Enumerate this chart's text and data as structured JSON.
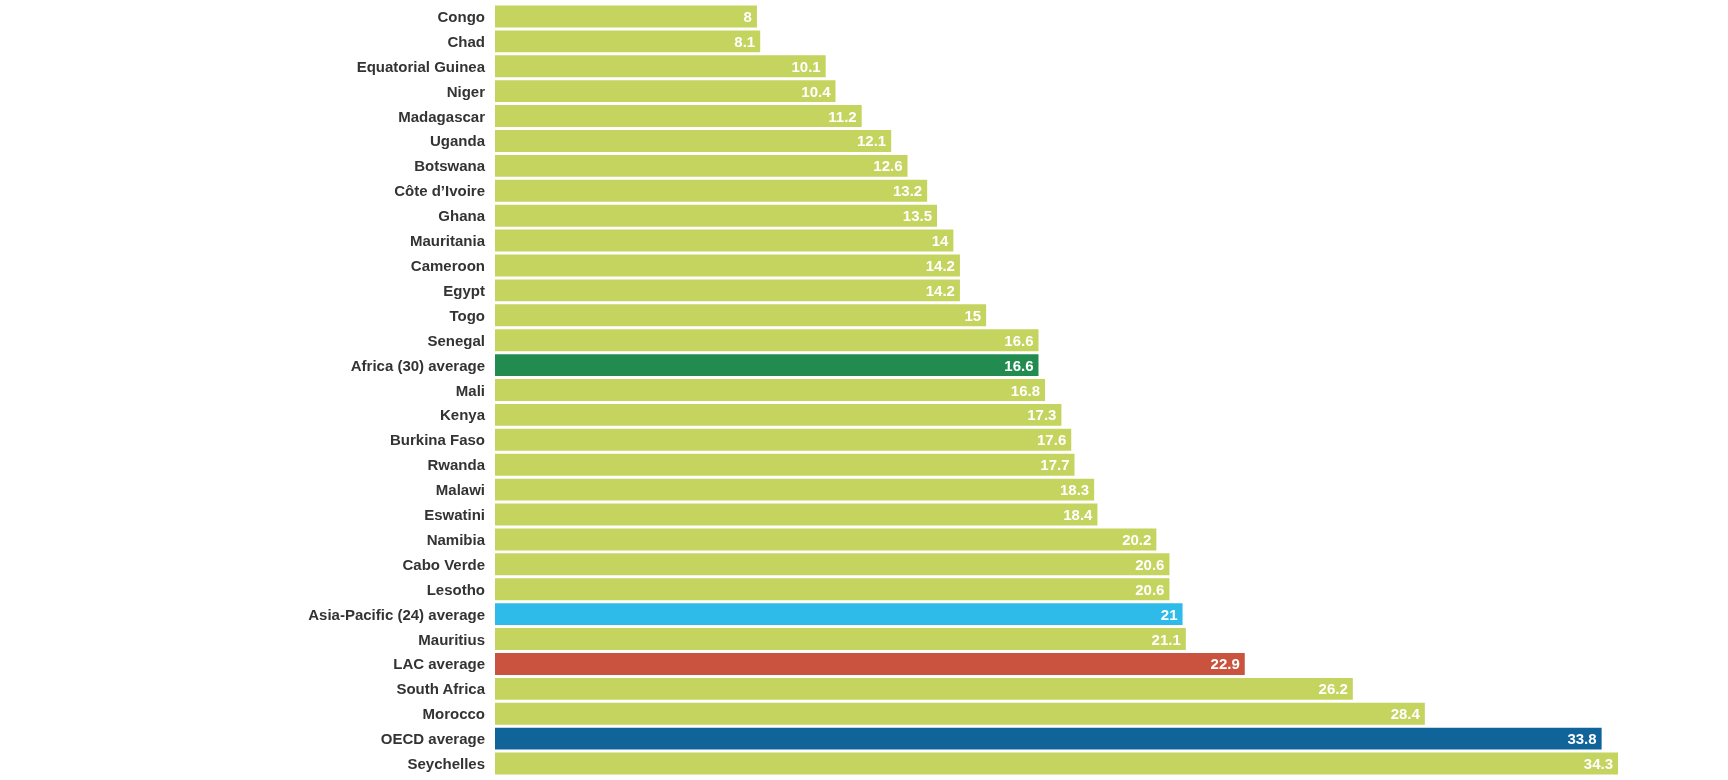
{
  "chart_data": {
    "type": "bar",
    "orientation": "horizontal",
    "data_labels": true,
    "categories": [
      "Congo",
      "Chad",
      "Equatorial Guinea",
      "Niger",
      "Madagascar",
      "Uganda",
      "Botswana",
      "Côte d’Ivoire",
      "Ghana",
      "Mauritania",
      "Cameroon",
      "Egypt",
      "Togo",
      "Senegal",
      "Africa (30) average",
      "Mali",
      "Kenya",
      "Burkina Faso",
      "Rwanda",
      "Malawi",
      "Eswatini",
      "Namibia",
      "Cabo Verde",
      "Lesotho",
      "Asia-Pacific (24) average",
      "Mauritius",
      "LAC average",
      "South Africa",
      "Morocco",
      "OECD average",
      "Seychelles"
    ],
    "values": [
      8,
      8.1,
      10.1,
      10.4,
      11.2,
      12.1,
      12.6,
      13.2,
      13.5,
      14,
      14.2,
      14.2,
      15,
      16.6,
      16.6,
      16.8,
      17.3,
      17.6,
      17.7,
      18.3,
      18.4,
      20.2,
      20.6,
      20.6,
      21,
      21.1,
      22.9,
      26.2,
      28.4,
      33.8,
      34.3
    ],
    "colors": [
      "#c5d35f",
      "#c5d35f",
      "#c5d35f",
      "#c5d35f",
      "#c5d35f",
      "#c5d35f",
      "#c5d35f",
      "#c5d35f",
      "#c5d35f",
      "#c5d35f",
      "#c5d35f",
      "#c5d35f",
      "#c5d35f",
      "#c5d35f",
      "#228b50",
      "#c5d35f",
      "#c5d35f",
      "#c5d35f",
      "#c5d35f",
      "#c5d35f",
      "#c5d35f",
      "#c5d35f",
      "#c5d35f",
      "#c5d35f",
      "#2ebbe9",
      "#c5d35f",
      "#c9533f",
      "#c5d35f",
      "#c5d35f",
      "#11649a",
      "#c5d35f"
    ]
  }
}
